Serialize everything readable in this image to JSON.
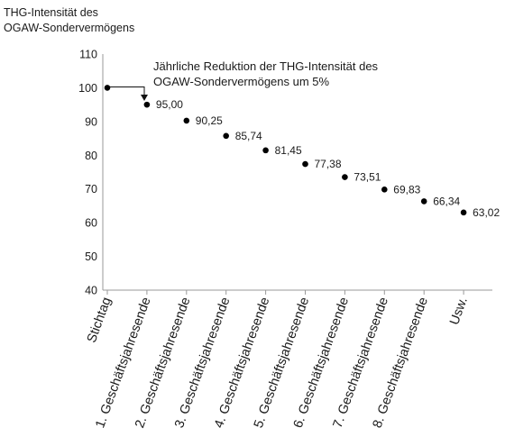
{
  "chart_data": {
    "type": "scatter",
    "ylabel_lines": [
      "THG-Intensität des",
      "OGAW-Sondervermögens"
    ],
    "annotation_lines": [
      "Jährliche Reduktion der THG-Intensität des",
      "OGAW-Sondervermögens um 5%"
    ],
    "ylim": [
      40,
      110
    ],
    "yticks": [
      40,
      50,
      60,
      70,
      80,
      90,
      100,
      110
    ],
    "grid": false,
    "categories": [
      "Stichtag",
      "1. Geschäftsjahresende",
      "2. Geschäftsjahresende",
      "3. Geschäftsjahresende",
      "4. Geschäftsjahresende",
      "5. Geschäftsjahresende",
      "6. Geschäftsjahresende",
      "7. Geschäftsjahresende",
      "8. Geschäftsjahresende",
      "Usw."
    ],
    "values": [
      100,
      95.0,
      90.25,
      85.74,
      81.45,
      77.38,
      73.51,
      69.83,
      66.34,
      63.02
    ],
    "data_labels": [
      "",
      "95,00",
      "90,25",
      "85,74",
      "81,45",
      "77,38",
      "73,51",
      "69,83",
      "66,34",
      "63,02"
    ]
  }
}
